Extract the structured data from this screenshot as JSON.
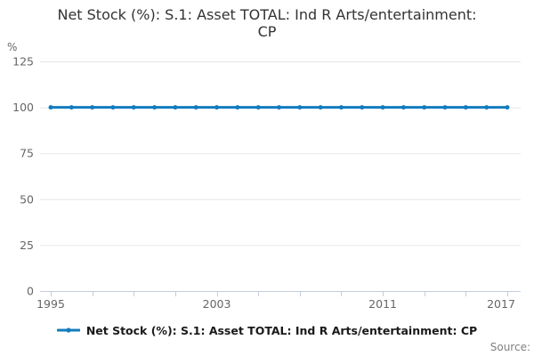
{
  "header": {
    "title_line1": "Net Stock (%): S.1: Asset TOTAL: Ind R Arts/entertainment:",
    "title_line2": "CP"
  },
  "axes": {
    "y_unit": "%"
  },
  "legend": {
    "label": "Net Stock (%): S.1: Asset TOTAL: Ind R Arts/entertainment: CP"
  },
  "footer": {
    "source_label": "Source:"
  },
  "chart_data": {
    "type": "line",
    "title": "Net Stock (%): S.1: Asset TOTAL: Ind R Arts/entertainment: CP",
    "xlabel": "",
    "ylabel": "%",
    "x": [
      1995,
      1996,
      1997,
      1998,
      1999,
      2000,
      2001,
      2002,
      2003,
      2004,
      2005,
      2006,
      2007,
      2008,
      2009,
      2010,
      2011,
      2012,
      2013,
      2014,
      2015,
      2016,
      2017
    ],
    "series": [
      {
        "name": "Net Stock (%): S.1: Asset TOTAL: Ind R Arts/entertainment: CP",
        "values": [
          100,
          100,
          100,
          100,
          100,
          100,
          100,
          100,
          100,
          100,
          100,
          100,
          100,
          100,
          100,
          100,
          100,
          100,
          100,
          100,
          100,
          100,
          100
        ]
      }
    ],
    "ylim": [
      0,
      125
    ],
    "yticks": [
      0,
      25,
      50,
      75,
      100,
      125
    ],
    "xticks": [
      1995,
      1997,
      1999,
      2001,
      2003,
      2005,
      2007,
      2009,
      2011,
      2013,
      2015,
      2017
    ],
    "xtick_labels": [
      1995,
      2003,
      2011,
      2017
    ],
    "grid": "horizontal",
    "legend_position": "bottom",
    "marker": "circle",
    "colors": {
      "line": "#137cbe",
      "grid": "#e6e6e6",
      "axis": "#c3cedb",
      "tick_text": "#666666",
      "title_text": "#333333",
      "legend_text": "#1a1a1a",
      "source_text": "#7f7f7f"
    }
  }
}
